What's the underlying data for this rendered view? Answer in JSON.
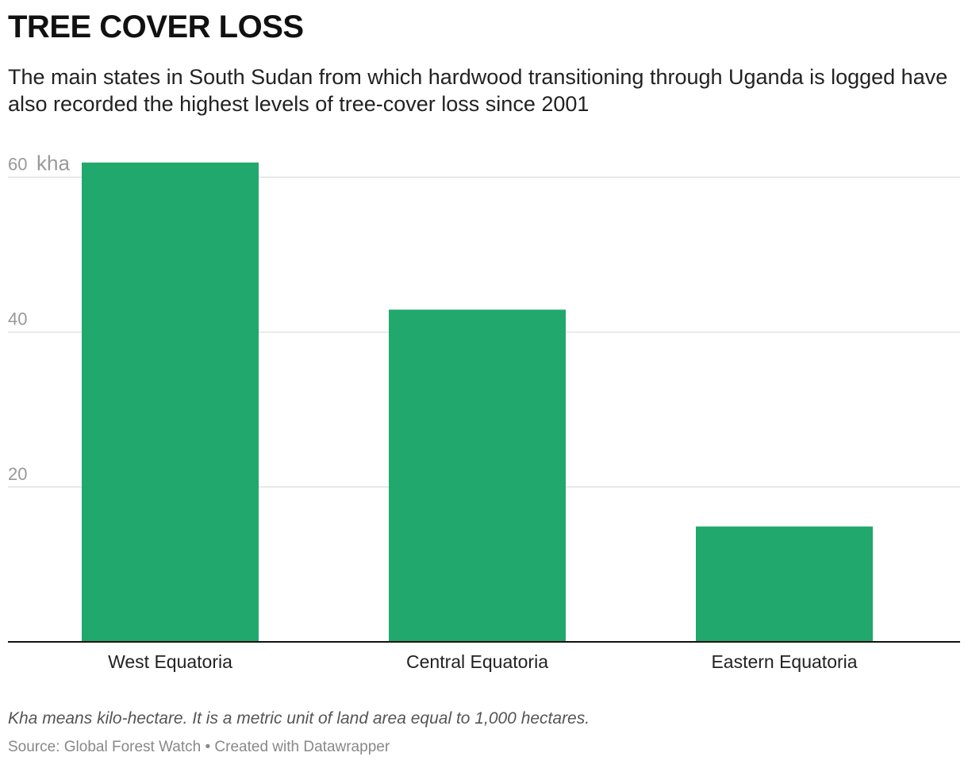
{
  "title": "TREE COVER LOSS",
  "subtitle": "The main states in South Sudan from which hardwood transitioning through Uganda is logged have also recorded the highest levels of tree-cover loss since 2001",
  "note": "Kha means kilo-hectare. It is a metric unit of land area equal to 1,000 hectares.",
  "source": "Source: Global Forest Watch • Created with Datawrapper",
  "colors": {
    "bar": "#21a86c",
    "grid": "#e2e2e2",
    "baseline": "#111111",
    "tick_label": "#999999"
  },
  "chart_data": {
    "type": "bar",
    "categories": [
      "West Equatoria",
      "Central Equatoria",
      "Eastern Equatoria"
    ],
    "values": [
      61.9,
      42.9,
      14.9
    ],
    "unit": "kha",
    "ylim": [
      0,
      60
    ],
    "yticks": [
      20,
      40,
      60
    ],
    "ytick_labels": [
      "20",
      "40",
      "60"
    ],
    "ytick_unit_label": "kha",
    "grid": true,
    "legend": "none"
  }
}
